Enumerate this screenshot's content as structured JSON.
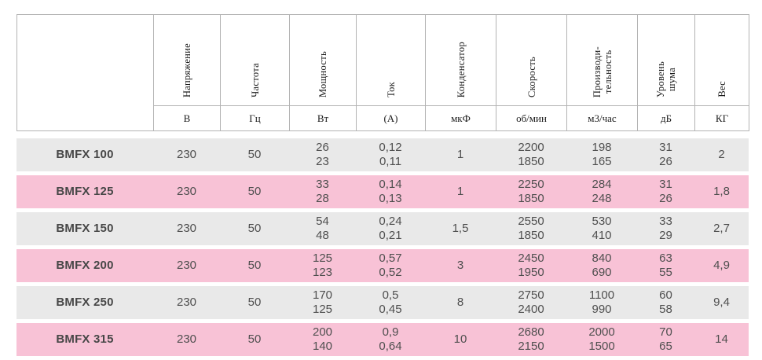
{
  "table": {
    "columns": [
      {
        "label": "",
        "unit": ""
      },
      {
        "label": "Напряжение",
        "unit": "В"
      },
      {
        "label": "Частота",
        "unit": "Гц"
      },
      {
        "label": "Мощность",
        "unit": "Вт"
      },
      {
        "label": "Ток",
        "unit": "(А)"
      },
      {
        "label": "Конденсатор",
        "unit": "мкФ"
      },
      {
        "label": "Скорость",
        "unit": "об/мин"
      },
      {
        "label": "Производи-\nтельность",
        "unit": "м3/час"
      },
      {
        "label": "Уровень\nшума",
        "unit": "дБ"
      },
      {
        "label": "Вес",
        "unit": "КГ"
      }
    ],
    "rows": [
      {
        "model": "BMFX 100",
        "highlight": false,
        "values": [
          "230",
          "50",
          "26\n23",
          "0,12\n0,11",
          "1",
          "2200\n1850",
          "198\n165",
          "31\n26",
          "2"
        ]
      },
      {
        "model": "BMFX 125",
        "highlight": true,
        "values": [
          "230",
          "50",
          "33\n28",
          "0,14\n0,13",
          "1",
          "2250\n1850",
          "284\n248",
          "31\n26",
          "1,8"
        ]
      },
      {
        "model": "BMFX 150",
        "highlight": false,
        "values": [
          "230",
          "50",
          "54\n48",
          "0,24\n0,21",
          "1,5",
          "2550\n1850",
          "530\n410",
          "33\n29",
          "2,7"
        ]
      },
      {
        "model": "BMFX 200",
        "highlight": true,
        "values": [
          "230",
          "50",
          "125\n123",
          "0,57\n0,52",
          "3",
          "2450\n1950",
          "840\n690",
          "63\n55",
          "4,9"
        ]
      },
      {
        "model": "BMFX 250",
        "highlight": false,
        "values": [
          "230",
          "50",
          "170\n125",
          "0,5\n0,45",
          "8",
          "2750\n2400",
          "1100\n990",
          "60\n58",
          "9,4"
        ]
      },
      {
        "model": "BMFX 315",
        "highlight": true,
        "values": [
          "230",
          "50",
          "200\n140",
          "0,9\n0,64",
          "10",
          "2680\n2150",
          "2000\n1500",
          "70\n65",
          "14"
        ]
      }
    ],
    "colors": {
      "row_gray": "#e9e9e9",
      "row_pink": "#f8c2d6",
      "border": "#b3b3b3",
      "data_text": "#4f4f4f",
      "header_text": "#1c1c1c"
    }
  }
}
